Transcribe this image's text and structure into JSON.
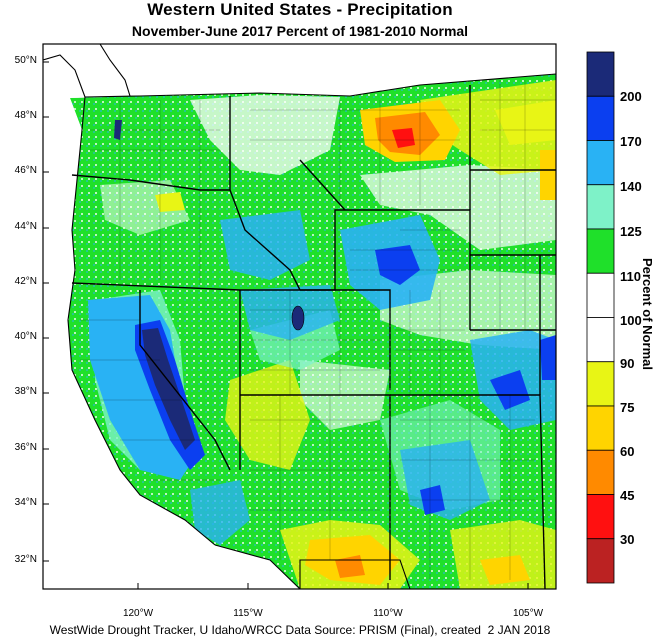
{
  "title": "Western United States - Precipitation",
  "subtitle": "November-June 2017  Percent of 1981-2010 Normal",
  "credit": "WestWide Drought Tracker, U Idaho/WRCC Data Source: PRISM (Final), created  2 JAN 2018",
  "legend": {
    "title": "Percent of Normal",
    "ticks": [
      "200",
      "170",
      "140",
      "125",
      "110",
      "100",
      "90",
      "75",
      "60",
      "45",
      "30"
    ],
    "colors": [
      "#1b2a78",
      "#0b3ff0",
      "#29b2f4",
      "#7ef2c8",
      "#1fe02a",
      "#ffffff",
      "#ffffff",
      "#e8f515",
      "#ffd400",
      "#ff8a00",
      "#ff1010",
      "#bb2222"
    ]
  },
  "axes": {
    "lat_labels": [
      "50°N",
      "48°N",
      "46°N",
      "44°N",
      "42°N",
      "40°N",
      "38°N",
      "36°N",
      "34°N",
      "32°N"
    ],
    "lon_labels": [
      "120°W",
      "115°W",
      "110°W",
      "105°W"
    ]
  }
}
